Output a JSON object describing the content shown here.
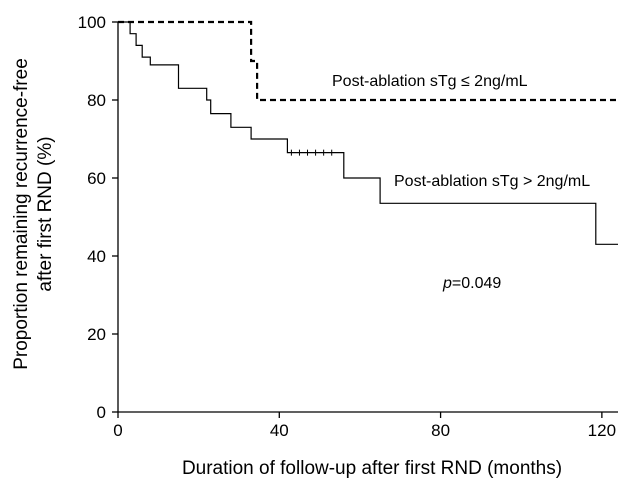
{
  "chart_data": {
    "type": "line",
    "subtype": "kaplan-meier step plot",
    "xlabel": "Duration of follow-up after first RND (months)",
    "ylabel_lines": [
      "Proportion remaining recurrence-free",
      "after first RND (%)"
    ],
    "xlim": [
      0,
      124
    ],
    "ylim": [
      0,
      100
    ],
    "xticks": [
      "0",
      "40",
      "80",
      "120"
    ],
    "yticks": [
      "0",
      "20",
      "40",
      "60",
      "80",
      "100"
    ],
    "grid": false,
    "legend": "none",
    "series": [
      {
        "name": "Post-ablation sTg ≤ 2ng/mL",
        "style": "dashed",
        "points": [
          [
            0,
            100
          ],
          [
            33,
            100
          ],
          [
            33,
            90
          ],
          [
            34.5,
            90
          ],
          [
            34.5,
            80
          ],
          [
            124,
            80
          ]
        ]
      },
      {
        "name": "Post-ablation sTg > 2ng/mL",
        "style": "solid",
        "points": [
          [
            0,
            100
          ],
          [
            3,
            100
          ],
          [
            3,
            97
          ],
          [
            4.5,
            97
          ],
          [
            4.5,
            94
          ],
          [
            6,
            94
          ],
          [
            6,
            91
          ],
          [
            8,
            91
          ],
          [
            8,
            89
          ],
          [
            15,
            89
          ],
          [
            15,
            83
          ],
          [
            22,
            83
          ],
          [
            22,
            80
          ],
          [
            23,
            80
          ],
          [
            23,
            76.5
          ],
          [
            28,
            76.5
          ],
          [
            28,
            73
          ],
          [
            33,
            73
          ],
          [
            33,
            70
          ],
          [
            42,
            70
          ],
          [
            42,
            66.5
          ],
          [
            56,
            66.5
          ],
          [
            56,
            60
          ],
          [
            65,
            60
          ],
          [
            65,
            53.5
          ],
          [
            118.5,
            53.5
          ],
          [
            118.5,
            43
          ],
          [
            124,
            43
          ]
        ],
        "censor_x": [
          43,
          45,
          47,
          49,
          51,
          53
        ]
      }
    ],
    "annotations": {
      "series1_label": "Post-ablation sTg ≤ 2ng/mL",
      "series2_label": "Post-ablation sTg > 2ng/mL",
      "p_symbol": "p",
      "p_value": "=0.049"
    }
  }
}
